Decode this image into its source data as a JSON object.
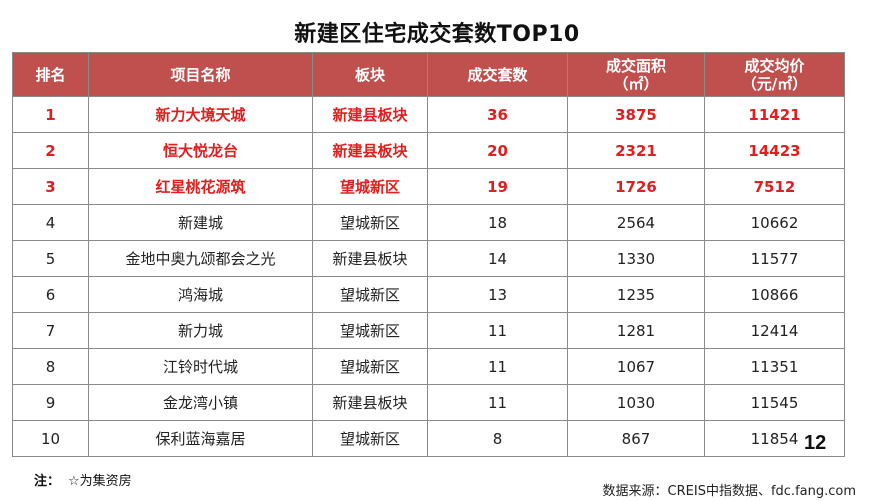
{
  "title": "新建区住宅成交套数TOP10",
  "table": {
    "headers": {
      "rank": "排名",
      "name": "项目名称",
      "area_block": "板块",
      "units": "成交套数",
      "floor_area_line1": "成交面积",
      "floor_area_line2": "（㎡）",
      "price_line1": "成交均价",
      "price_line2": "（元/㎡）"
    },
    "rows": [
      {
        "rank": "1",
        "name": "新力大境天城",
        "block": "新建县板块",
        "units": "36",
        "area": "3875",
        "price": "11421",
        "highlight": true
      },
      {
        "rank": "2",
        "name": "恒大悦龙台",
        "block": "新建县板块",
        "units": "20",
        "area": "2321",
        "price": "14423",
        "highlight": true
      },
      {
        "rank": "3",
        "name": "红星桃花源筑",
        "block": "望城新区",
        "units": "19",
        "area": "1726",
        "price": "7512",
        "highlight": true
      },
      {
        "rank": "4",
        "name": "新建城",
        "block": "望城新区",
        "units": "18",
        "area": "2564",
        "price": "10662",
        "highlight": false
      },
      {
        "rank": "5",
        "name": "金地中奥九颂都会之光",
        "block": "新建县板块",
        "units": "14",
        "area": "1330",
        "price": "11577",
        "highlight": false
      },
      {
        "rank": "6",
        "name": "鸿海城",
        "block": "望城新区",
        "units": "13",
        "area": "1235",
        "price": "10866",
        "highlight": false
      },
      {
        "rank": "7",
        "name": "新力城",
        "block": "望城新区",
        "units": "11",
        "area": "1281",
        "price": "12414",
        "highlight": false
      },
      {
        "rank": "8",
        "name": "江铃时代城",
        "block": "望城新区",
        "units": "11",
        "area": "1067",
        "price": "11351",
        "highlight": false
      },
      {
        "rank": "9",
        "name": "金龙湾小镇",
        "block": "新建县板块",
        "units": "11",
        "area": "1030",
        "price": "11545",
        "highlight": false
      },
      {
        "rank": "10",
        "name": "保利蓝海嘉居",
        "block": "望城新区",
        "units": "8",
        "area": "867",
        "price": "11854",
        "highlight": false
      }
    ]
  },
  "page_number": "12",
  "note": {
    "label": "注：",
    "text": "☆为集资房"
  },
  "source": "数据来源：CREIS中指数据、fdc.fang.com",
  "colors": {
    "header_bg": "#c0504d",
    "highlight_text": "#e02020"
  }
}
